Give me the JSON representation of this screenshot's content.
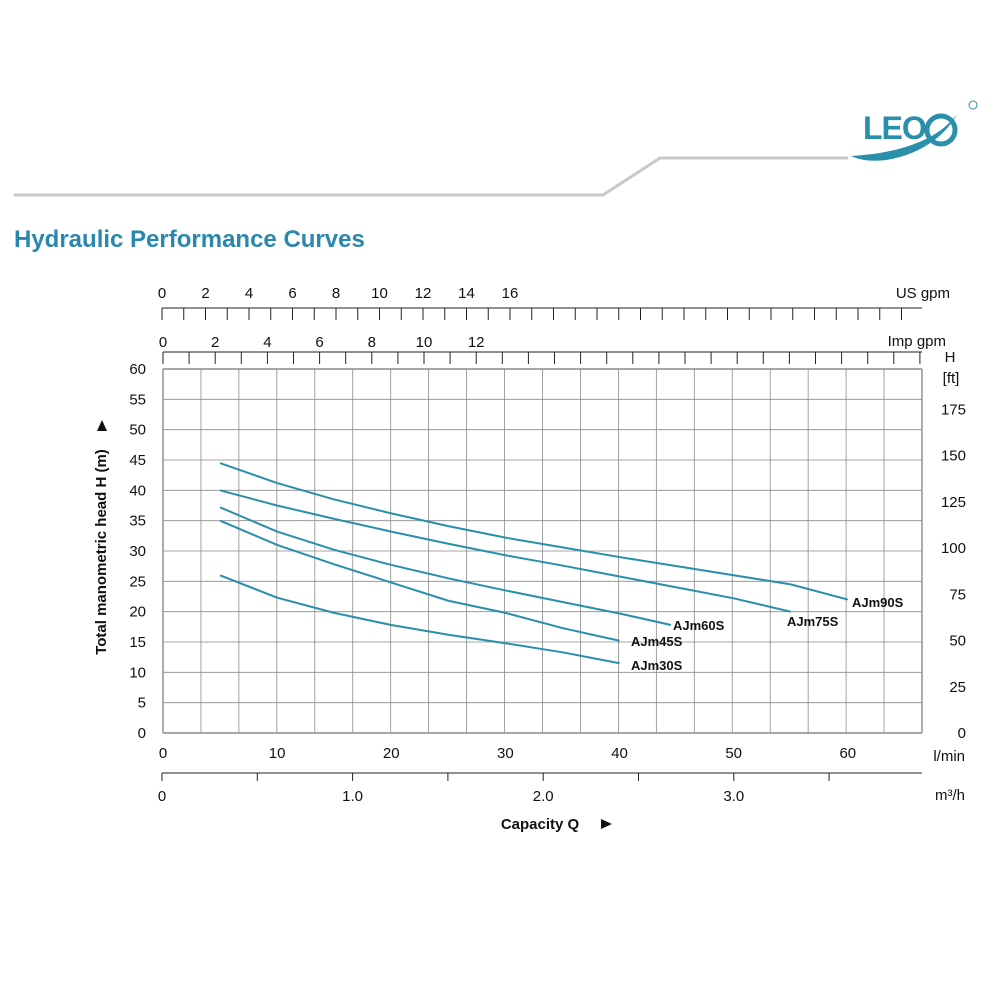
{
  "header": {
    "title": "Hydraulic Performance Curves",
    "logo_text": "LEO"
  },
  "colors": {
    "accent": "#2a87ad",
    "curve": "#2a8fab",
    "grid": "#8a8a8a",
    "rule": "#c8c8c8"
  },
  "chart_data": {
    "type": "line",
    "title": "Hydraulic Performance Curves",
    "xlabel": "Capacity Q",
    "ylabel": "Total manometric head H (m)",
    "x_unit": "l/min",
    "y_unit": "m",
    "xlim": [
      0,
      66.5
    ],
    "ylim": [
      0,
      60
    ],
    "x_ticks": [
      0,
      10,
      20,
      30,
      40,
      50,
      60
    ],
    "y_ticks": [
      0,
      5,
      10,
      15,
      20,
      25,
      30,
      35,
      40,
      45,
      50,
      55,
      60
    ],
    "grid": true,
    "secondary_axes": {
      "us_gpm": {
        "unit": "US gpm",
        "ticks": [
          0,
          2,
          4,
          6,
          8,
          10,
          12,
          14,
          16
        ]
      },
      "imp_gpm": {
        "unit": "Imp gpm",
        "ticks": [
          0,
          2,
          4,
          6,
          8,
          10,
          12
        ]
      },
      "m3h": {
        "unit": "m³/h",
        "ticks": [
          "0",
          "1.0",
          "2.0",
          "3.0"
        ]
      },
      "feet": {
        "unit_top": "H",
        "unit_bottom": "[ft]",
        "ticks": [
          0,
          25,
          50,
          75,
          100,
          125,
          150,
          175
        ]
      }
    },
    "series": [
      {
        "name": "AJm90S",
        "x": [
          5,
          10,
          15,
          20,
          25,
          30,
          35,
          40,
          45,
          50,
          55,
          60
        ],
        "y": [
          44.5,
          41.2,
          38.5,
          36.2,
          34.1,
          32.2,
          30.6,
          29.0,
          27.5,
          26.0,
          24.5,
          22.0
        ]
      },
      {
        "name": "AJm75S",
        "x": [
          5,
          10,
          15,
          20,
          25,
          30,
          35,
          40,
          45,
          50,
          55
        ],
        "y": [
          40,
          37.5,
          35.3,
          33.2,
          31.2,
          29.3,
          27.6,
          25.8,
          24.0,
          22.2,
          20.0
        ]
      },
      {
        "name": "AJm60S",
        "x": [
          5,
          10,
          15,
          20,
          25,
          30,
          35,
          40,
          44.5
        ],
        "y": [
          37.2,
          33.2,
          30.2,
          27.7,
          25.5,
          23.5,
          21.6,
          19.7,
          17.8
        ]
      },
      {
        "name": "AJm45S",
        "x": [
          5,
          10,
          15,
          20,
          25,
          30,
          35,
          40
        ],
        "y": [
          35.0,
          31.0,
          27.8,
          24.8,
          21.8,
          19.8,
          17.3,
          15.2
        ]
      },
      {
        "name": "AJm30S",
        "x": [
          5,
          10,
          15,
          20,
          25,
          30,
          35,
          40
        ],
        "y": [
          26.0,
          22.3,
          19.8,
          17.8,
          16.2,
          14.8,
          13.3,
          11.5
        ]
      }
    ]
  }
}
